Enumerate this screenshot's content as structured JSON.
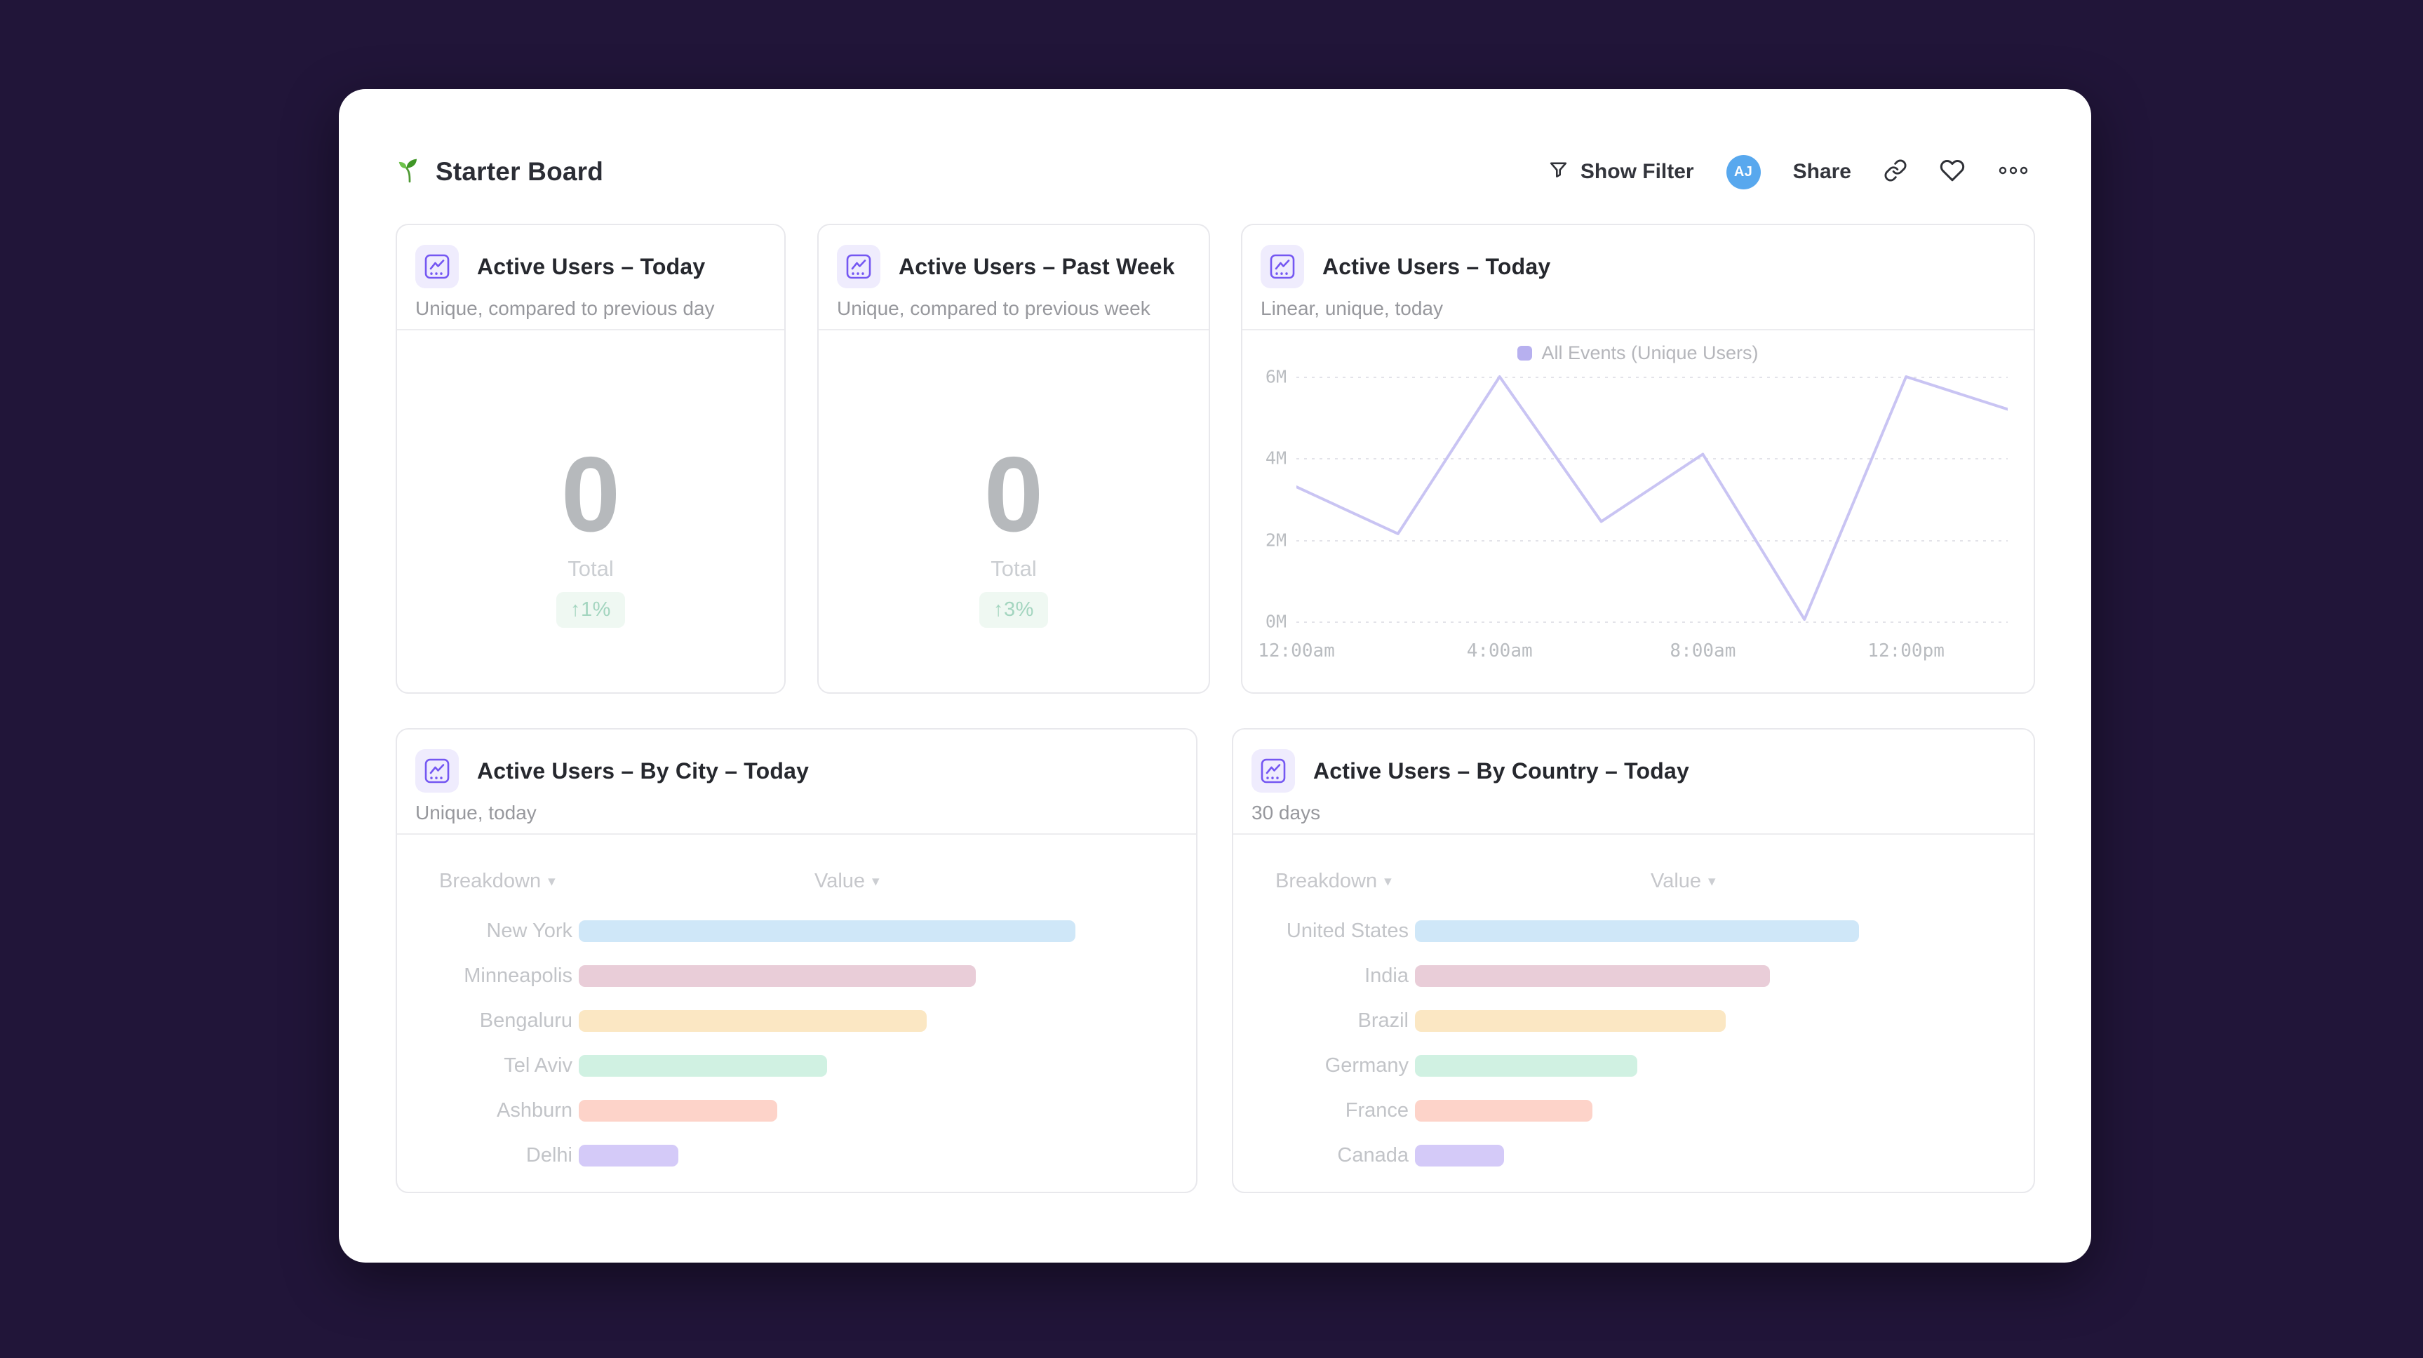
{
  "header": {
    "title": "Starter Board",
    "show_filter_label": "Show Filter",
    "avatar_initials": "AJ",
    "share_label": "Share"
  },
  "icons": {
    "dropdown_arrow": "▾"
  },
  "cards": {
    "today": {
      "title": "Active Users – Today",
      "subtitle": "Unique, compared to previous day",
      "value": "0",
      "value_label": "Total",
      "change": "↑1%"
    },
    "past_week": {
      "title": "Active Users – Past Week",
      "subtitle": "Unique, compared to previous week",
      "value": "0",
      "value_label": "Total",
      "change": "↑3%"
    },
    "today_linear": {
      "title": "Active Users – Today",
      "subtitle": "Linear, unique, today",
      "legend": "All Events (Unique Users)"
    },
    "by_city": {
      "title": "Active Users – By City – Today",
      "subtitle": "Unique, today",
      "col_breakdown": "Breakdown",
      "col_value": "Value"
    },
    "by_country": {
      "title": "Active Users – By Country – Today",
      "subtitle": "30 days",
      "col_breakdown": "Breakdown",
      "col_value": "Value"
    }
  },
  "chart_data": [
    {
      "type": "line",
      "title": "Active Users – Today",
      "legend": [
        "All Events (Unique Users)"
      ],
      "x_hours": [
        0,
        2,
        4,
        6,
        8,
        10,
        12,
        14
      ],
      "values_millions": [
        3.3,
        2.15,
        6.0,
        2.45,
        4.1,
        0.05,
        6.0,
        5.2
      ],
      "xticks": [
        {
          "label": "12:00am",
          "hour": 0
        },
        {
          "label": "4:00am",
          "hour": 4
        },
        {
          "label": "8:00am",
          "hour": 8
        },
        {
          "label": "12:00pm",
          "hour": 12
        }
      ],
      "yticks": [
        {
          "label": "0M",
          "value": 0
        },
        {
          "label": "2M",
          "value": 2
        },
        {
          "label": "4M",
          "value": 4
        },
        {
          "label": "6M",
          "value": 6
        }
      ],
      "ylim": [
        0,
        6
      ],
      "grid": true,
      "legend_position": "top",
      "line_color": "#c9c4f3"
    },
    {
      "type": "bar",
      "title": "Active Users – By City – Today",
      "orientation": "horizontal",
      "categories": [
        "New York",
        "Minneapolis",
        "Bengaluru",
        "Tel Aviv",
        "Ashburn",
        "Delhi"
      ],
      "values_relative": [
        100,
        80,
        70,
        50,
        40,
        20
      ],
      "colors": [
        "#cfe7f8",
        "#e9cdd8",
        "#fbe7c3",
        "#d0f1e2",
        "#fdd3c9",
        "#d4caf8"
      ]
    },
    {
      "type": "bar",
      "title": "Active Users – By Country – Today",
      "orientation": "horizontal",
      "categories": [
        "United States",
        "India",
        "Brazil",
        "Germany",
        "France",
        "Canada"
      ],
      "values_relative": [
        100,
        80,
        70,
        50,
        40,
        20
      ],
      "colors": [
        "#cfe7f8",
        "#e9cdd8",
        "#fbe7c3",
        "#d0f1e2",
        "#fdd3c9",
        "#d4caf8"
      ]
    }
  ]
}
